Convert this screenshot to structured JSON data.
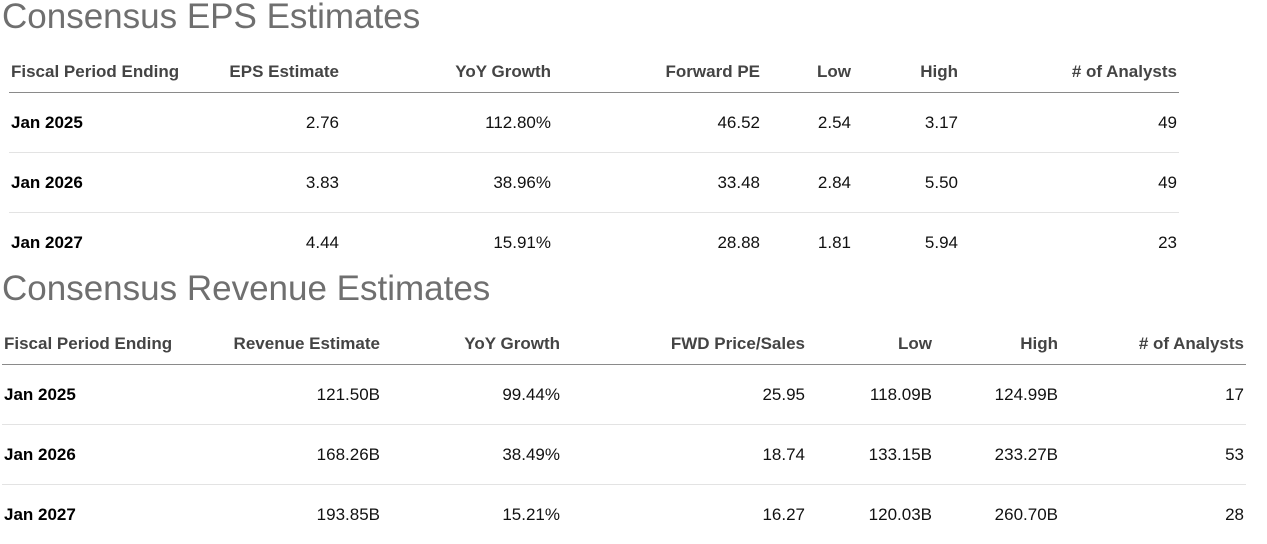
{
  "eps": {
    "title": "Consensus EPS Estimates",
    "headers": {
      "period": "Fiscal Period Ending",
      "estimate": "EPS Estimate",
      "growth": "YoY Growth",
      "multiple": "Forward PE",
      "low": "Low",
      "high": "High",
      "analysts": "# of Analysts"
    },
    "rows": [
      {
        "period": "Jan 2025",
        "estimate": "2.76",
        "growth": "112.80%",
        "multiple": "46.52",
        "low": "2.54",
        "high": "3.17",
        "analysts": "49"
      },
      {
        "period": "Jan 2026",
        "estimate": "3.83",
        "growth": "38.96%",
        "multiple": "33.48",
        "low": "2.84",
        "high": "5.50",
        "analysts": "49"
      },
      {
        "period": "Jan 2027",
        "estimate": "4.44",
        "growth": "15.91%",
        "multiple": "28.88",
        "low": "1.81",
        "high": "5.94",
        "analysts": "23"
      }
    ]
  },
  "revenue": {
    "title": "Consensus Revenue Estimates",
    "headers": {
      "period": "Fiscal Period Ending",
      "estimate": "Revenue Estimate",
      "growth": "YoY Growth",
      "multiple": "FWD Price/Sales",
      "low": "Low",
      "high": "High",
      "analysts": "# of Analysts"
    },
    "rows": [
      {
        "period": "Jan 2025",
        "estimate": "121.50B",
        "growth": "99.44%",
        "multiple": "25.95",
        "low": "118.09B",
        "high": "124.99B",
        "analysts": "17"
      },
      {
        "period": "Jan 2026",
        "estimate": "168.26B",
        "growth": "38.49%",
        "multiple": "18.74",
        "low": "133.15B",
        "high": "233.27B",
        "analysts": "53"
      },
      {
        "period": "Jan 2027",
        "estimate": "193.85B",
        "growth": "15.21%",
        "multiple": "16.27",
        "low": "120.03B",
        "high": "260.70B",
        "analysts": "28"
      }
    ]
  }
}
